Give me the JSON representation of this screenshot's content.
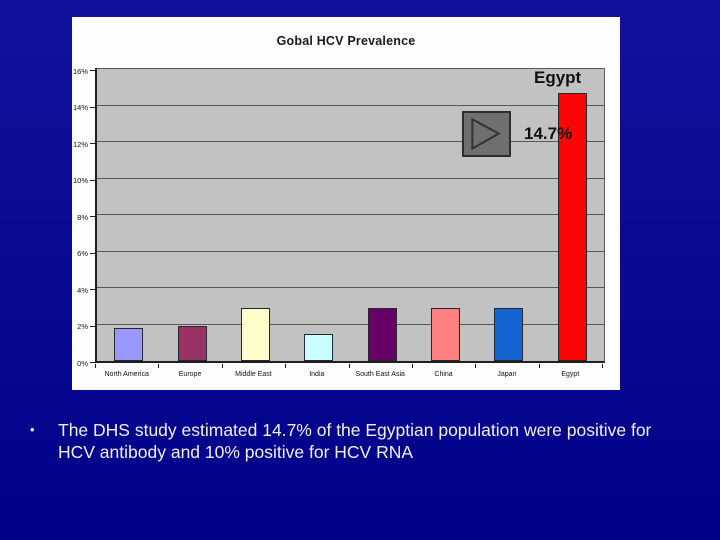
{
  "chart_data": {
    "type": "bar",
    "title": "Gobal HCV Prevalence",
    "categories": [
      "North America",
      "Europe",
      "Middle East",
      "India",
      "South East Asia",
      "China",
      "Japan",
      "Egypt"
    ],
    "values": [
      1.8,
      1.9,
      2.9,
      1.5,
      2.9,
      2.9,
      2.9,
      14.7
    ],
    "bar_colors": [
      "#9999FF",
      "#993366",
      "#FFFFCC",
      "#CCFFFF",
      "#660066",
      "#FF8080",
      "#1464D2",
      "#FB0505"
    ],
    "xlabel": "",
    "ylabel": "",
    "ylim": [
      0,
      16
    ],
    "ytick_step": 2,
    "ytick_suffix": "%",
    "grid": true,
    "legend": "none",
    "plot_bg_color": "#C2C2C2",
    "panel_bg_color": "#FFFFFF",
    "annotations": [
      {
        "text": "Egypt",
        "target": "Egypt",
        "position": "above-bar"
      },
      {
        "text": "14.7%",
        "target": "Egypt",
        "position": "left-of-bar"
      }
    ]
  },
  "media_button": {
    "icon": "play-icon",
    "color": "#6F6F6F"
  },
  "slide": {
    "background_color": "#0A0A93",
    "bullet_glyph": "•",
    "bullet_text": "The DHS study estimated 14.7% of the Egyptian population were positive for HCV antibody and 10% positive for HCV RNA"
  }
}
